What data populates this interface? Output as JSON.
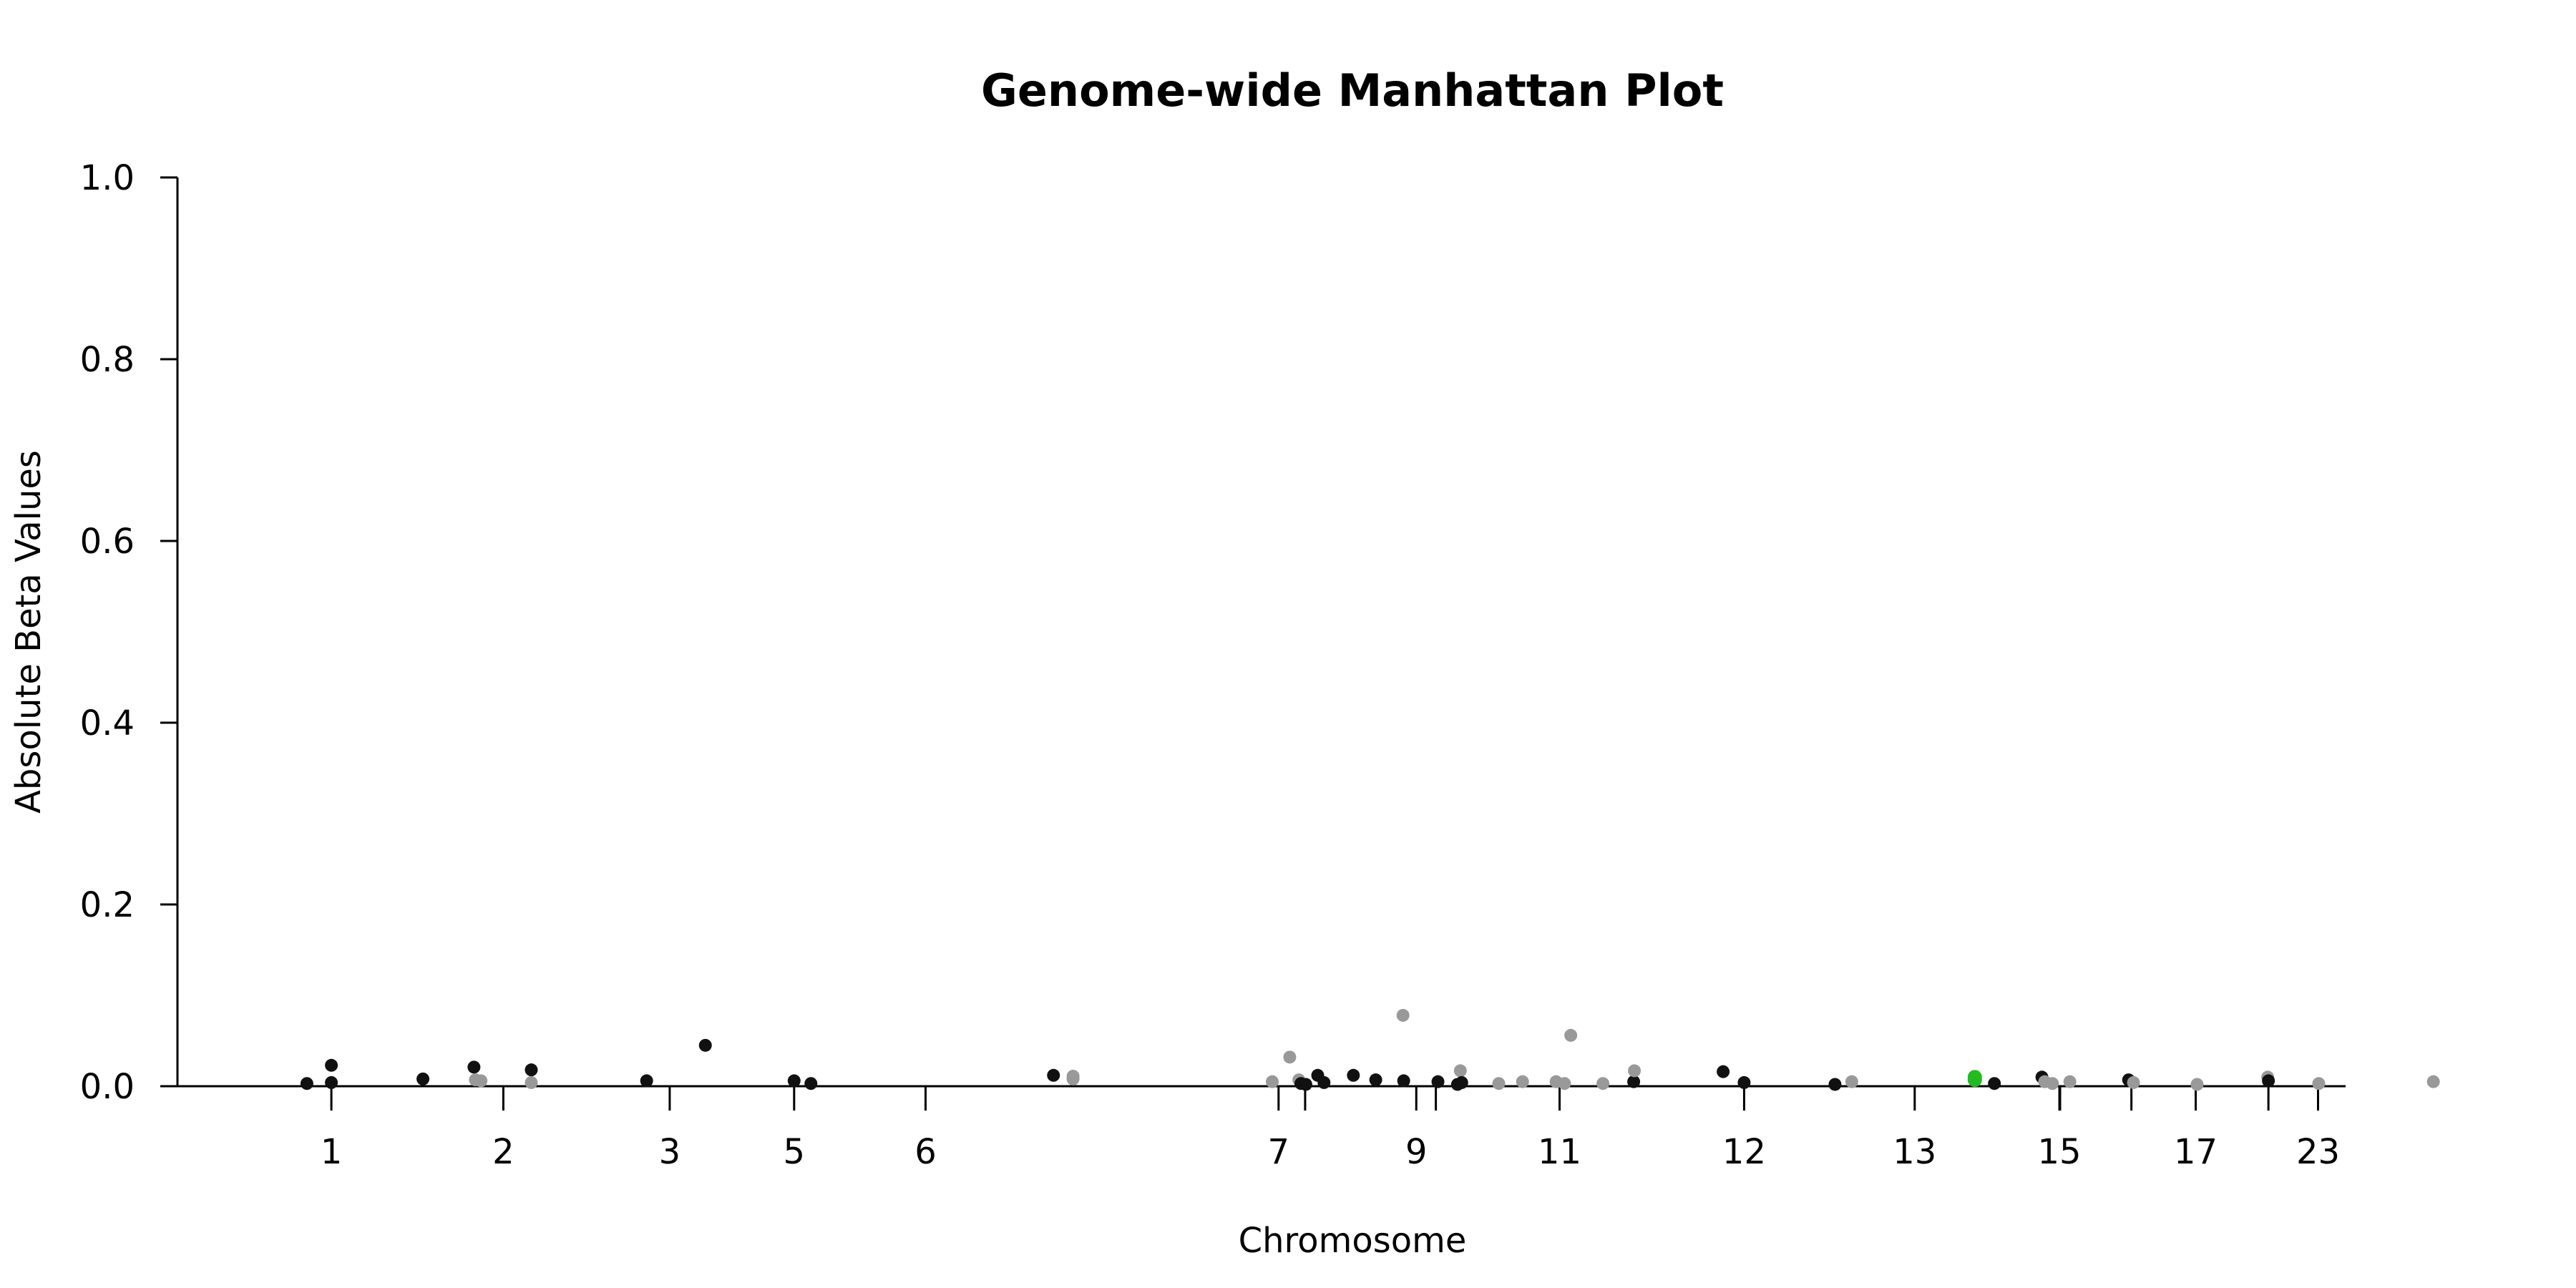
{
  "chart_data": {
    "type": "scatter",
    "title": "Genome-wide Manhattan Plot",
    "xlabel": "Chromosome",
    "ylabel": "Absolute Beta Values",
    "ylim": [
      0,
      1
    ],
    "y_ticks": [
      "0.0",
      "0.2",
      "0.4",
      "0.6",
      "0.8",
      "1.0"
    ],
    "y_tick_values": [
      0,
      0.2,
      0.4,
      0.6,
      0.8,
      1.0
    ],
    "xlim": [
      0,
      3163
    ],
    "x_ticks": [
      {
        "label": "1",
        "pos": 126
      },
      {
        "label": "2",
        "pos": 372
      },
      {
        "label": "3",
        "pos": 610
      },
      {
        "label": "5",
        "pos": 788
      },
      {
        "label": "6",
        "pos": 976
      },
      {
        "label": "7",
        "pos": 1481
      },
      {
        "label": "9",
        "pos": 1678
      },
      {
        "label": "11",
        "pos": 1883
      },
      {
        "label": "12",
        "pos": 2147
      },
      {
        "label": "13",
        "pos": 2391
      },
      {
        "label": "15",
        "pos": 2598
      },
      {
        "label": "17",
        "pos": 2793
      },
      {
        "label": "23",
        "pos": 2968
      }
    ],
    "minor_ticks": [
      1519,
      1706,
      2599,
      2701,
      2897
    ],
    "grid": false,
    "legend": "none",
    "colors": {
      "odd": "#111111",
      "even": "#999999",
      "highlight": "#22bb22"
    },
    "points": [
      {
        "x": 91,
        "y": 0.003,
        "c": "odd"
      },
      {
        "x": 126,
        "y": 0.004,
        "c": "odd"
      },
      {
        "x": 126,
        "y": 0.023,
        "c": "odd"
      },
      {
        "x": 257,
        "y": 0.008,
        "c": "odd"
      },
      {
        "x": 330,
        "y": 0.021,
        "c": "odd"
      },
      {
        "x": 332,
        "y": 0.007,
        "c": "even"
      },
      {
        "x": 340,
        "y": 0.006,
        "c": "even"
      },
      {
        "x": 412,
        "y": 0.018,
        "c": "odd"
      },
      {
        "x": 412,
        "y": 0.004,
        "c": "even"
      },
      {
        "x": 577,
        "y": 0.006,
        "c": "odd"
      },
      {
        "x": 661,
        "y": 0.045,
        "c": "odd"
      },
      {
        "x": 788,
        "y": 0.006,
        "c": "odd"
      },
      {
        "x": 812,
        "y": 0.003,
        "c": "odd"
      },
      {
        "x": 1159,
        "y": 0.012,
        "c": "odd"
      },
      {
        "x": 1187,
        "y": 0.011,
        "c": "even"
      },
      {
        "x": 1187,
        "y": 0.008,
        "c": "even"
      },
      {
        "x": 1472,
        "y": 0.005,
        "c": "even"
      },
      {
        "x": 1497,
        "y": 0.032,
        "c": "even"
      },
      {
        "x": 1510,
        "y": 0.007,
        "c": "even"
      },
      {
        "x": 1513,
        "y": 0.003,
        "c": "odd"
      },
      {
        "x": 1520,
        "y": 0.002,
        "c": "odd"
      },
      {
        "x": 1537,
        "y": 0.012,
        "c": "odd"
      },
      {
        "x": 1546,
        "y": 0.004,
        "c": "odd"
      },
      {
        "x": 1588,
        "y": 0.012,
        "c": "odd"
      },
      {
        "x": 1620,
        "y": 0.007,
        "c": "odd"
      },
      {
        "x": 1659,
        "y": 0.078,
        "c": "even"
      },
      {
        "x": 1660,
        "y": 0.006,
        "c": "odd"
      },
      {
        "x": 1709,
        "y": 0.005,
        "c": "odd"
      },
      {
        "x": 1737,
        "y": 0.002,
        "c": "odd"
      },
      {
        "x": 1741,
        "y": 0.017,
        "c": "even"
      },
      {
        "x": 1743,
        "y": 0.004,
        "c": "odd"
      },
      {
        "x": 1796,
        "y": 0.003,
        "c": "even"
      },
      {
        "x": 1830,
        "y": 0.005,
        "c": "even"
      },
      {
        "x": 1878,
        "y": 0.005,
        "c": "even"
      },
      {
        "x": 1890,
        "y": 0.003,
        "c": "even"
      },
      {
        "x": 1899,
        "y": 0.056,
        "c": "even"
      },
      {
        "x": 1945,
        "y": 0.003,
        "c": "even"
      },
      {
        "x": 1989,
        "y": 0.005,
        "c": "odd"
      },
      {
        "x": 1990,
        "y": 0.017,
        "c": "even"
      },
      {
        "x": 2117,
        "y": 0.016,
        "c": "odd"
      },
      {
        "x": 2147,
        "y": 0.004,
        "c": "odd"
      },
      {
        "x": 2277,
        "y": 0.002,
        "c": "odd"
      },
      {
        "x": 2301,
        "y": 0.005,
        "c": "even"
      },
      {
        "x": 2477,
        "y": 0.01,
        "c": "highlight"
      },
      {
        "x": 2477,
        "y": 0.007,
        "c": "highlight"
      },
      {
        "x": 2505,
        "y": 0.003,
        "c": "odd"
      },
      {
        "x": 2573,
        "y": 0.01,
        "c": "odd"
      },
      {
        "x": 2577,
        "y": 0.005,
        "c": "even"
      },
      {
        "x": 2588,
        "y": 0.003,
        "c": "even"
      },
      {
        "x": 2613,
        "y": 0.005,
        "c": "even"
      },
      {
        "x": 2697,
        "y": 0.007,
        "c": "odd"
      },
      {
        "x": 2704,
        "y": 0.004,
        "c": "even"
      },
      {
        "x": 2795,
        "y": 0.002,
        "c": "even"
      },
      {
        "x": 2896,
        "y": 0.01,
        "c": "even"
      },
      {
        "x": 2897,
        "y": 0.006,
        "c": "odd"
      },
      {
        "x": 2969,
        "y": 0.003,
        "c": "even"
      },
      {
        "x": 3133,
        "y": 0.005,
        "c": "even"
      }
    ]
  }
}
